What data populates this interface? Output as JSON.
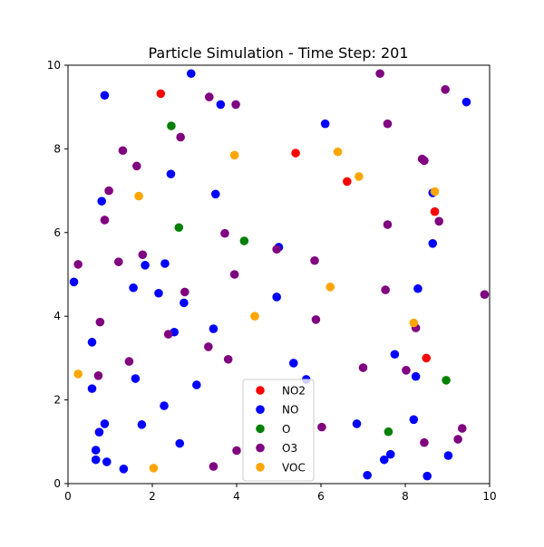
{
  "chart_data": {
    "type": "scatter",
    "title": "Particle Simulation - Time Step: 201",
    "xlabel": "",
    "ylabel": "",
    "xlim": [
      0,
      10
    ],
    "ylim": [
      0,
      10
    ],
    "xticks": [
      "0",
      "2",
      "4",
      "6",
      "8",
      "10"
    ],
    "yticks": [
      "0",
      "2",
      "4",
      "6",
      "8",
      "10"
    ],
    "grid": false,
    "legend_position": "bottom-center",
    "series": [
      {
        "name": "NO2",
        "color": "#ff0000",
        "points": [
          [
            2.2,
            9.32
          ],
          [
            5.4,
            7.9
          ],
          [
            6.62,
            7.22
          ],
          [
            8.7,
            6.5
          ],
          [
            8.5,
            3.0
          ]
        ]
      },
      {
        "name": "NO",
        "color": "#0000ff",
        "points": [
          [
            2.92,
            9.8
          ],
          [
            9.45,
            9.12
          ],
          [
            0.87,
            9.28
          ],
          [
            3.62,
            9.06
          ],
          [
            6.1,
            8.6
          ],
          [
            2.44,
            7.4
          ],
          [
            0.8,
            6.75
          ],
          [
            3.5,
            6.92
          ],
          [
            8.65,
            6.95
          ],
          [
            8.65,
            5.74
          ],
          [
            5.0,
            5.65
          ],
          [
            0.14,
            4.82
          ],
          [
            1.83,
            5.22
          ],
          [
            2.3,
            5.26
          ],
          [
            1.55,
            4.68
          ],
          [
            2.15,
            4.55
          ],
          [
            2.75,
            4.32
          ],
          [
            4.95,
            4.46
          ],
          [
            8.3,
            4.66
          ],
          [
            2.52,
            3.62
          ],
          [
            3.45,
            3.7
          ],
          [
            0.57,
            3.38
          ],
          [
            7.75,
            3.09
          ],
          [
            5.35,
            2.88
          ],
          [
            1.6,
            2.51
          ],
          [
            5.65,
            2.49
          ],
          [
            8.25,
            2.56
          ],
          [
            3.05,
            2.36
          ],
          [
            0.57,
            2.27
          ],
          [
            2.28,
            1.86
          ],
          [
            0.87,
            1.43
          ],
          [
            1.75,
            1.41
          ],
          [
            6.85,
            1.43
          ],
          [
            8.2,
            1.53
          ],
          [
            0.74,
            1.23
          ],
          [
            0.66,
            0.8
          ],
          [
            2.65,
            0.96
          ],
          [
            7.65,
            0.7
          ],
          [
            7.5,
            0.57
          ],
          [
            0.66,
            0.57
          ],
          [
            0.92,
            0.52
          ],
          [
            1.32,
            0.35
          ],
          [
            9.02,
            0.67
          ],
          [
            7.1,
            0.2
          ],
          [
            8.52,
            0.18
          ]
        ]
      },
      {
        "name": "O",
        "color": "#008000",
        "points": [
          [
            2.45,
            8.55
          ],
          [
            2.63,
            6.12
          ],
          [
            4.18,
            5.8
          ],
          [
            8.97,
            2.47
          ],
          [
            7.6,
            1.24
          ]
        ]
      },
      {
        "name": "O3",
        "color": "#800080",
        "points": [
          [
            7.4,
            9.8
          ],
          [
            8.95,
            9.42
          ],
          [
            3.35,
            9.24
          ],
          [
            3.98,
            9.06
          ],
          [
            7.58,
            8.6
          ],
          [
            2.67,
            8.28
          ],
          [
            1.3,
            7.96
          ],
          [
            8.4,
            7.76
          ],
          [
            8.45,
            7.72
          ],
          [
            1.63,
            7.59
          ],
          [
            0.97,
            7.0
          ],
          [
            0.87,
            6.3
          ],
          [
            8.8,
            6.27
          ],
          [
            7.58,
            6.19
          ],
          [
            3.72,
            5.98
          ],
          [
            1.77,
            5.47
          ],
          [
            0.24,
            5.24
          ],
          [
            1.2,
            5.3
          ],
          [
            5.85,
            5.33
          ],
          [
            4.95,
            5.6
          ],
          [
            3.95,
            5.0
          ],
          [
            2.77,
            4.58
          ],
          [
            7.53,
            4.63
          ],
          [
            9.88,
            4.52
          ],
          [
            5.88,
            3.92
          ],
          [
            0.76,
            3.86
          ],
          [
            2.38,
            3.57
          ],
          [
            8.25,
            3.72
          ],
          [
            3.33,
            3.27
          ],
          [
            3.8,
            2.97
          ],
          [
            1.45,
            2.92
          ],
          [
            7.0,
            2.77
          ],
          [
            8.02,
            2.71
          ],
          [
            0.72,
            2.58
          ],
          [
            6.02,
            1.35
          ],
          [
            9.35,
            1.32
          ],
          [
            9.25,
            1.06
          ],
          [
            8.45,
            0.98
          ],
          [
            4.0,
            0.79
          ],
          [
            3.45,
            0.41
          ]
        ]
      },
      {
        "name": "VOC",
        "color": "#ffa500",
        "points": [
          [
            6.4,
            7.93
          ],
          [
            3.95,
            7.85
          ],
          [
            6.9,
            7.34
          ],
          [
            1.68,
            6.87
          ],
          [
            8.7,
            6.98
          ],
          [
            6.22,
            4.7
          ],
          [
            4.43,
            4.0
          ],
          [
            8.2,
            3.84
          ],
          [
            0.24,
            2.62
          ],
          [
            2.03,
            0.37
          ]
        ]
      }
    ]
  }
}
